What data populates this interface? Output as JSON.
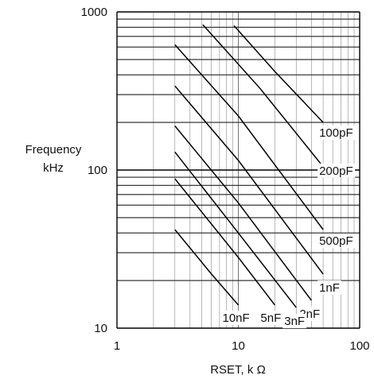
{
  "chart_data": {
    "type": "line",
    "title": "",
    "ylabel_line1": "Frequency",
    "ylabel_line2": "kHz",
    "xlabel": "RSET, k Ω",
    "x_scale": "log",
    "y_scale": "log",
    "xlim": [
      1,
      100
    ],
    "ylim": [
      10,
      1000
    ],
    "x_ticks": [
      {
        "value": 1,
        "label": "1"
      },
      {
        "value": 10,
        "label": "10"
      },
      {
        "value": 100,
        "label": "100"
      }
    ],
    "y_ticks": [
      {
        "value": 10,
        "label": "10"
      },
      {
        "value": 100,
        "label": "100"
      },
      {
        "value": 1000,
        "label": "1000"
      }
    ],
    "grid": true,
    "series": [
      {
        "name": "100pF",
        "color": "#000000",
        "points": [
          [
            9.2,
            820
          ],
          [
            20,
            420
          ],
          [
            50,
            200
          ]
        ]
      },
      {
        "name": "200pF",
        "color": "#000000",
        "points": [
          [
            5.1,
            830
          ],
          [
            15,
            330
          ],
          [
            50,
            105
          ]
        ]
      },
      {
        "name": "500pF",
        "color": "#000000",
        "points": [
          [
            3,
            620
          ],
          [
            10,
            220
          ],
          [
            50,
            42
          ]
        ]
      },
      {
        "name": "1nF",
        "color": "#000000",
        "points": [
          [
            3,
            340
          ],
          [
            10,
            115
          ],
          [
            50,
            22
          ]
        ]
      },
      {
        "name": "2nF",
        "color": "#000000",
        "points": [
          [
            3,
            190
          ],
          [
            10,
            62
          ],
          [
            40,
            15
          ]
        ]
      },
      {
        "name": "3nF",
        "color": "#000000",
        "points": [
          [
            3,
            130
          ],
          [
            10,
            40
          ],
          [
            30,
            13.5
          ]
        ]
      },
      {
        "name": "5nF",
        "color": "#000000",
        "points": [
          [
            3,
            88
          ],
          [
            10,
            28
          ],
          [
            20,
            14
          ]
        ]
      },
      {
        "name": "10nF",
        "color": "#000000",
        "points": [
          [
            3,
            42
          ],
          [
            6,
            22
          ],
          [
            10,
            14
          ]
        ]
      }
    ],
    "series_labels": [
      {
        "series": "100pF",
        "text": "100pF"
      },
      {
        "series": "200pF",
        "text": "200pF"
      },
      {
        "series": "500pF",
        "text": "500pF"
      },
      {
        "series": "1nF",
        "text": "1nF"
      },
      {
        "series": "2nF",
        "text": "2nF"
      },
      {
        "series": "3nF",
        "text": "3nF"
      },
      {
        "series": "5nF",
        "text": "5nF"
      },
      {
        "series": "10nF",
        "text": "10nF"
      }
    ]
  }
}
